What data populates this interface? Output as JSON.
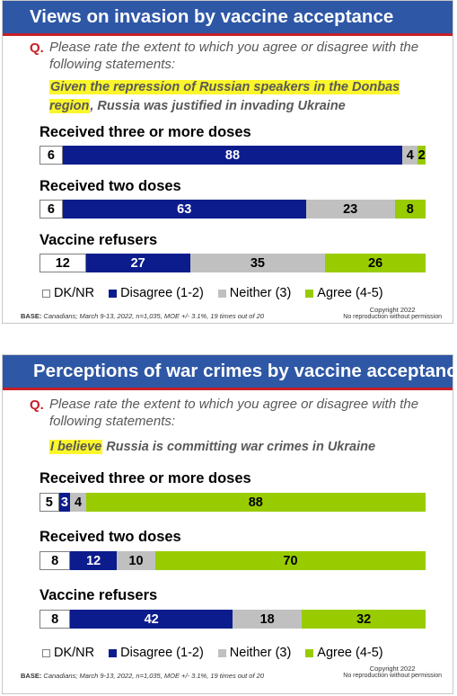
{
  "chart_data": [
    {
      "type": "bar",
      "orientation": "horizontal-stacked",
      "title": "Views on invasion by vaccine acceptance",
      "question_prefix": "Q.",
      "question": "Please rate the extent to which you agree or disagree with the following statements:",
      "statement_highlight": "Given the repression of Russian speakers in the Donbas region",
      "statement_rest": ", Russia was justified in invading Ukraine",
      "categories": [
        "Received three or more doses",
        "Received two doses",
        "Vaccine refusers"
      ],
      "series": [
        {
          "name": "DK/NR",
          "values": [
            6,
            6,
            12
          ]
        },
        {
          "name": "Disagree (1-2)",
          "values": [
            88,
            63,
            27
          ]
        },
        {
          "name": "Neither (3)",
          "values": [
            4,
            23,
            35
          ]
        },
        {
          "name": "Agree (4-5)",
          "values": [
            2,
            8,
            26
          ]
        }
      ],
      "base": "BASE:",
      "base_text": " Canadians; March 9-13, 2022, n=1,035, MOE +/- 3.1%, 19 times out of 20",
      "copyright": "Copyright 2022",
      "copyright_note": "No reproduction without permission"
    },
    {
      "type": "bar",
      "orientation": "horizontal-stacked",
      "title": "Perceptions of war crimes by vaccine acceptance",
      "question_prefix": "Q.",
      "question": "Please rate the extent to which you agree or disagree with the following statements:",
      "statement_highlight": "I believe",
      "statement_rest": " Russia is committing war crimes in Ukraine",
      "categories": [
        "Received three or more doses",
        "Received two doses",
        "Vaccine refusers"
      ],
      "series": [
        {
          "name": "DK/NR",
          "values": [
            5,
            8,
            8
          ]
        },
        {
          "name": "Disagree (1-2)",
          "values": [
            3,
            12,
            42
          ]
        },
        {
          "name": "Neither (3)",
          "values": [
            4,
            10,
            18
          ]
        },
        {
          "name": "Agree (4-5)",
          "values": [
            88,
            70,
            32
          ]
        }
      ],
      "base": "BASE:",
      "base_text": " Canadians; March 9-13, 2022, n=1,035, MOE +/- 3.1%, 19 times out of 20",
      "copyright": "Copyright 2022",
      "copyright_note": "No reproduction without permission"
    }
  ],
  "colors": {
    "dk_nr": "#ffffff",
    "disagree": "#0d1c8c",
    "neither": "#c0c0c0",
    "agree": "#99cc00",
    "title_bar": "#2e57a6",
    "accent_red": "#c62026",
    "highlight": "#fbf62b"
  }
}
